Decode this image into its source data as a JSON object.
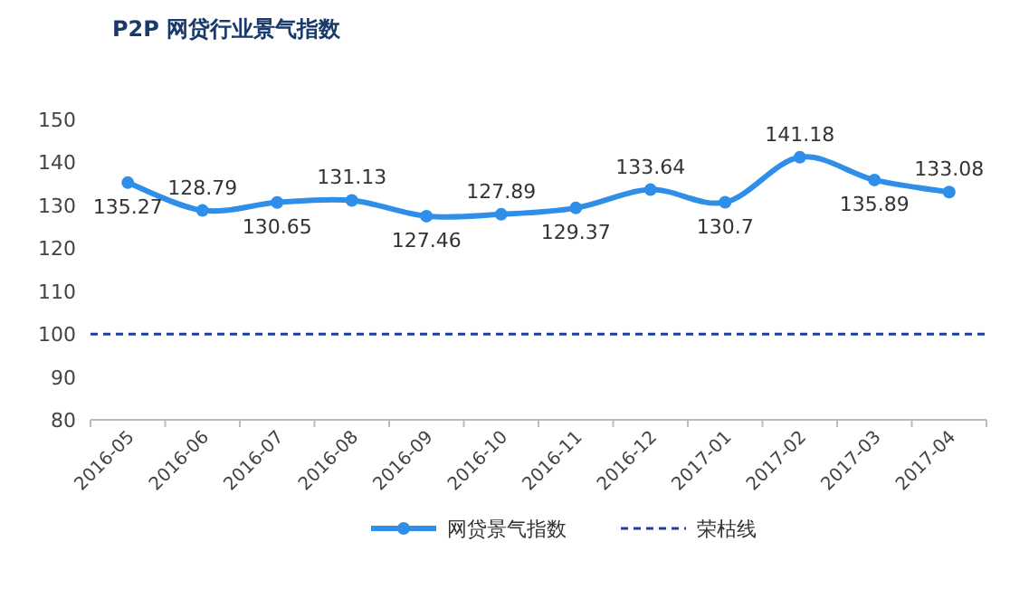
{
  "chart_data": {
    "type": "line",
    "title": "P2P 网贷行业景气指数",
    "categories": [
      "2016-05",
      "2016-06",
      "2016-07",
      "2016-08",
      "2016-09",
      "2016-10",
      "2016-11",
      "2016-12",
      "2017-01",
      "2017-02",
      "2017-03",
      "2017-04"
    ],
    "series": [
      {
        "name": "网贷景气指数",
        "color": "#2e8ee8",
        "values": [
          135.27,
          128.79,
          130.65,
          131.13,
          127.46,
          127.89,
          129.37,
          133.64,
          130.7,
          141.18,
          135.89,
          133.08
        ]
      }
    ],
    "ylim": [
      80,
      150
    ],
    "yticks": [
      80,
      90,
      100,
      110,
      120,
      130,
      140,
      150
    ],
    "ref_lines": [
      {
        "axis": "y",
        "value": 100,
        "label": "荣枯线",
        "color": "#1f3f99",
        "line_style": "dashed"
      }
    ],
    "data_labels": true,
    "legend": "bottom",
    "marker": "circle",
    "grid": false
  }
}
